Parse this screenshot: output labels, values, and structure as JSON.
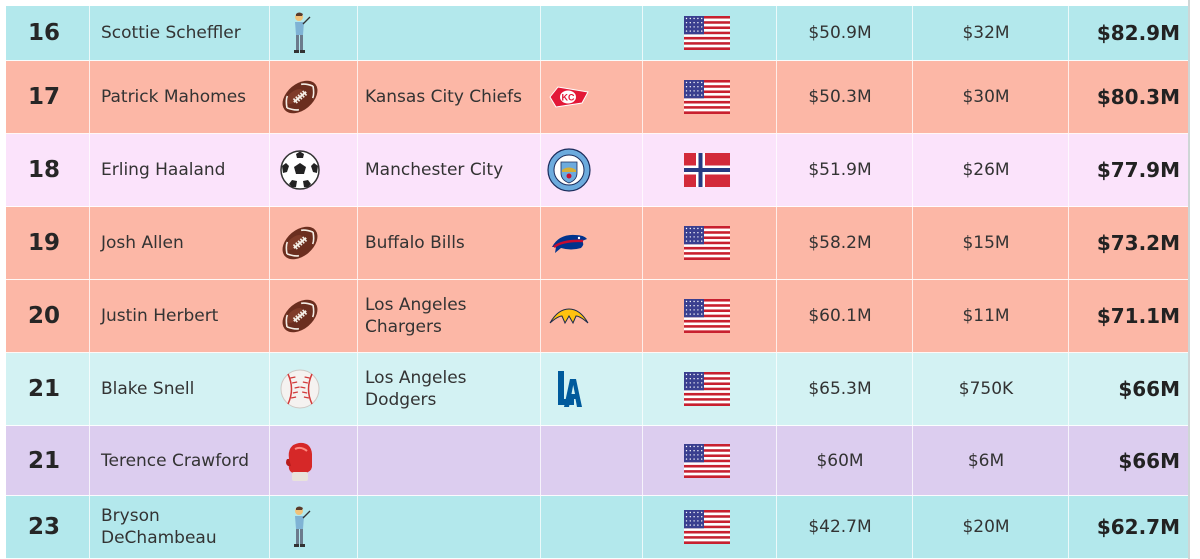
{
  "rows": [
    {
      "rank": "16",
      "name": "Scottie Scheffler",
      "sport_icon": "golfer-icon",
      "team": "",
      "team_logo": "",
      "country_flag": "usa-flag-icon",
      "salary": "$50.9M",
      "endorsements": "$32M",
      "total": "$82.9M",
      "bg": "#b3e8ec"
    },
    {
      "rank": "17",
      "name": "Patrick Mahomes",
      "sport_icon": "american-football-icon",
      "team": "Kansas City Chiefs",
      "team_logo": "chiefs-logo",
      "country_flag": "usa-flag-icon",
      "salary": "$50.3M",
      "endorsements": "$30M",
      "total": "$80.3M",
      "bg": "#fcb7a6"
    },
    {
      "rank": "18",
      "name": "Erling Haaland",
      "sport_icon": "soccer-ball-icon",
      "team": "Manchester City",
      "team_logo": "man-city-logo",
      "country_flag": "norway-flag-icon",
      "salary": "$51.9M",
      "endorsements": "$26M",
      "total": "$77.9M",
      "bg": "#fbe3fb"
    },
    {
      "rank": "19",
      "name": "Josh Allen",
      "sport_icon": "american-football-icon",
      "team": "Buffalo Bills",
      "team_logo": "bills-logo",
      "country_flag": "usa-flag-icon",
      "salary": "$58.2M",
      "endorsements": "$15M",
      "total": "$73.2M",
      "bg": "#fcb7a6"
    },
    {
      "rank": "20",
      "name": "Justin Herbert",
      "sport_icon": "american-football-icon",
      "team": "Los Angeles Chargers",
      "team_logo": "chargers-logo",
      "country_flag": "usa-flag-icon",
      "salary": "$60.1M",
      "endorsements": "$11M",
      "total": "$71.1M",
      "bg": "#fcb7a6"
    },
    {
      "rank": "21",
      "name": "Blake Snell",
      "sport_icon": "baseball-icon",
      "team": "Los Angeles Dodgers",
      "team_logo": "dodgers-logo",
      "country_flag": "usa-flag-icon",
      "salary": "$65.3M",
      "endorsements": "$750K",
      "total": "$66M",
      "bg": "#d3f2f3"
    },
    {
      "rank": "21",
      "name": "Terence Crawford",
      "sport_icon": "boxing-glove-icon",
      "team": "",
      "team_logo": "",
      "country_flag": "usa-flag-icon",
      "salary": "$60M",
      "endorsements": "$6M",
      "total": "$66M",
      "bg": "#dccdef"
    },
    {
      "rank": "23",
      "name": "Bryson DeChambeau",
      "sport_icon": "golfer-icon",
      "team": "",
      "team_logo": "",
      "country_flag": "usa-flag-icon",
      "salary": "$42.7M",
      "endorsements": "$20M",
      "total": "$62.7M",
      "bg": "#b3e8ec"
    }
  ]
}
